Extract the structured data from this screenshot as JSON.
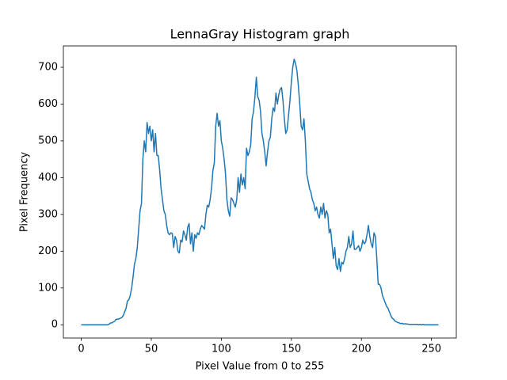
{
  "chart_data": {
    "type": "line",
    "title": "LennaGray Histogram graph",
    "xlabel": "Pixel Value from 0 to 255",
    "ylabel": "Pixel Frequency",
    "x": [
      0,
      1,
      2,
      3,
      4,
      5,
      6,
      7,
      8,
      9,
      10,
      11,
      12,
      13,
      14,
      15,
      16,
      17,
      18,
      19,
      20,
      21,
      22,
      23,
      24,
      25,
      26,
      27,
      28,
      29,
      30,
      31,
      32,
      33,
      34,
      35,
      36,
      37,
      38,
      39,
      40,
      41,
      42,
      43,
      44,
      45,
      46,
      47,
      48,
      49,
      50,
      51,
      52,
      53,
      54,
      55,
      56,
      57,
      58,
      59,
      60,
      61,
      62,
      63,
      64,
      65,
      66,
      67,
      68,
      69,
      70,
      71,
      72,
      73,
      74,
      75,
      76,
      77,
      78,
      79,
      80,
      81,
      82,
      83,
      84,
      85,
      86,
      87,
      88,
      89,
      90,
      91,
      92,
      93,
      94,
      95,
      96,
      97,
      98,
      99,
      100,
      101,
      102,
      103,
      104,
      105,
      106,
      107,
      108,
      109,
      110,
      111,
      112,
      113,
      114,
      115,
      116,
      117,
      118,
      119,
      120,
      121,
      122,
      123,
      124,
      125,
      126,
      127,
      128,
      129,
      130,
      131,
      132,
      133,
      134,
      135,
      136,
      137,
      138,
      139,
      140,
      141,
      142,
      143,
      144,
      145,
      146,
      147,
      148,
      149,
      150,
      151,
      152,
      153,
      154,
      155,
      156,
      157,
      158,
      159,
      160,
      161,
      162,
      163,
      164,
      165,
      166,
      167,
      168,
      169,
      170,
      171,
      172,
      173,
      174,
      175,
      176,
      177,
      178,
      179,
      180,
      181,
      182,
      183,
      184,
      185,
      186,
      187,
      188,
      189,
      190,
      191,
      192,
      193,
      194,
      195,
      196,
      197,
      198,
      199,
      200,
      201,
      202,
      203,
      204,
      205,
      206,
      207,
      208,
      209,
      210,
      211,
      212,
      213,
      214,
      215,
      216,
      217,
      218,
      219,
      220,
      221,
      222,
      223,
      224,
      225,
      226,
      227,
      228,
      229,
      230,
      231,
      232,
      233,
      234,
      235,
      236,
      237,
      238,
      239,
      240,
      241,
      242,
      243,
      244,
      245,
      246,
      247,
      248,
      249,
      250,
      251,
      252,
      253,
      254,
      255
    ],
    "series": [
      {
        "name": "LennaGray",
        "color": "#1f77b4",
        "values": [
          0,
          0,
          0,
          0,
          0,
          0,
          0,
          0,
          0,
          0,
          0,
          0,
          0,
          0,
          0,
          0,
          0,
          0,
          0,
          0,
          2,
          5,
          5,
          8,
          10,
          15,
          15,
          16,
          18,
          20,
          25,
          35,
          45,
          65,
          68,
          80,
          100,
          130,
          165,
          180,
          210,
          260,
          310,
          330,
          450,
          500,
          470,
          550,
          520,
          540,
          500,
          530,
          470,
          520,
          460,
          460,
          420,
          370,
          340,
          310,
          300,
          270,
          250,
          245,
          250,
          248,
          210,
          240,
          230,
          200,
          195,
          230,
          225,
          255,
          245,
          230,
          265,
          275,
          220,
          250,
          200,
          245,
          235,
          250,
          245,
          260,
          270,
          265,
          260,
          300,
          325,
          320,
          340,
          370,
          420,
          440,
          540,
          575,
          540,
          555,
          500,
          480,
          450,
          410,
          340,
          310,
          295,
          345,
          340,
          330,
          320,
          340,
          400,
          360,
          410,
          380,
          400,
          370,
          480,
          460,
          470,
          490,
          560,
          580,
          620,
          673,
          620,
          610,
          580,
          520,
          500,
          470,
          432,
          470,
          500,
          510,
          560,
          590,
          580,
          630,
          600,
          625,
          640,
          645,
          610,
          560,
          520,
          530,
          570,
          610,
          660,
          700,
          722,
          710,
          690,
          650,
          600,
          540,
          530,
          560,
          500,
          410,
          390,
          370,
          360,
          340,
          330,
          310,
          320,
          300,
          290,
          320,
          300,
          330,
          290,
          310,
          300,
          250,
          260,
          220,
          180,
          210,
          160,
          150,
          180,
          145,
          170,
          165,
          180,
          200,
          210,
          240,
          210,
          220,
          255,
          205,
          205,
          210,
          215,
          200,
          210,
          230,
          220,
          225,
          245,
          270,
          240,
          220,
          210,
          250,
          240,
          180,
          110,
          110,
          100,
          80,
          70,
          60,
          50,
          45,
          35,
          25,
          18,
          15,
          10,
          8,
          6,
          5,
          3,
          4,
          2,
          3,
          2,
          2,
          1,
          1,
          1,
          1,
          1,
          1,
          1,
          0,
          1,
          0,
          1,
          0,
          0,
          0,
          0,
          0,
          0,
          0,
          0,
          0,
          0,
          0
        ]
      }
    ],
    "xlim": [
      -12.75,
      267.75
    ],
    "ylim": [
      -36.1,
      758.1
    ],
    "xticks": [
      0,
      50,
      100,
      150,
      200,
      250
    ],
    "yticks": [
      0,
      100,
      200,
      300,
      400,
      500,
      600,
      700
    ]
  }
}
